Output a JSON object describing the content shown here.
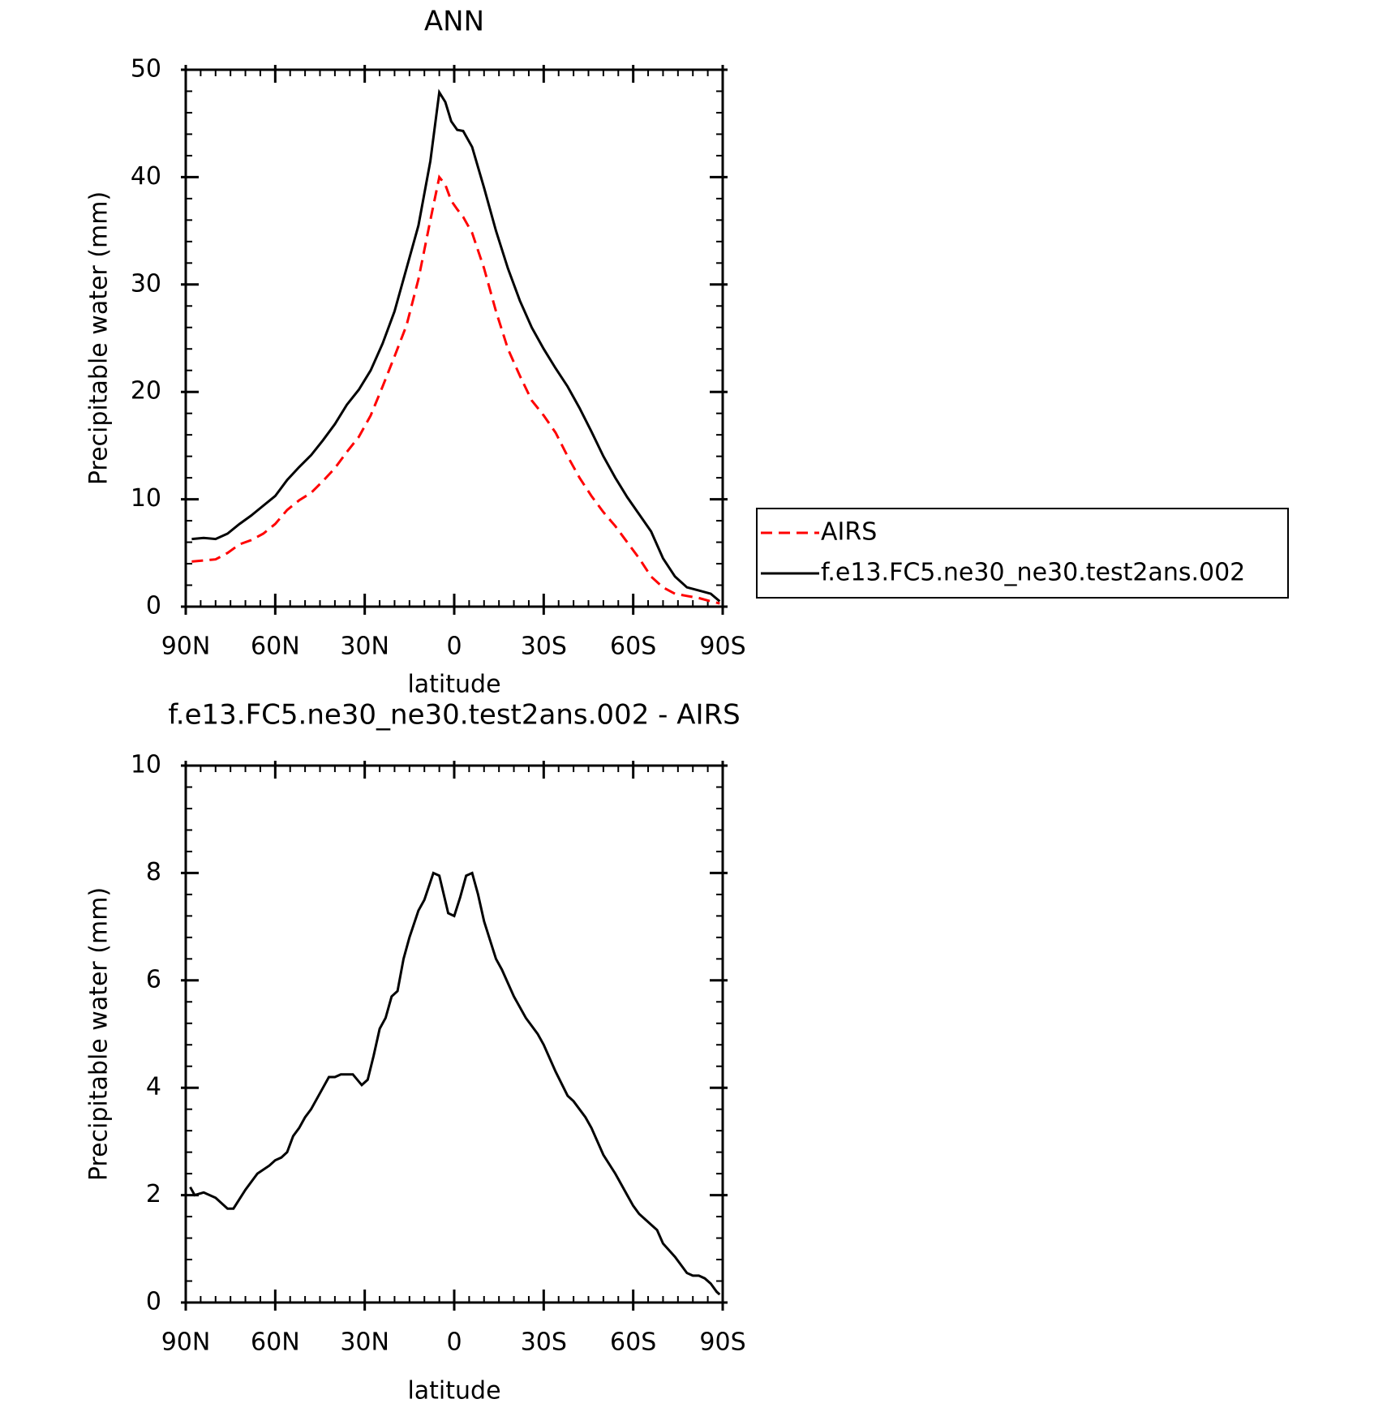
{
  "chart_data": [
    {
      "type": "line",
      "title": "ANN",
      "xlabel": "latitude",
      "ylabel": "Precipitable water (mm)",
      "x": [
        88,
        84,
        80,
        76,
        72,
        68,
        64,
        60,
        56,
        52,
        48,
        44,
        40,
        36,
        32,
        28,
        24,
        20,
        16,
        12,
        8,
        5,
        3,
        1,
        -1,
        -3,
        -6,
        -10,
        -14,
        -18,
        -22,
        -26,
        -30,
        -34,
        -38,
        -42,
        -46,
        -50,
        -54,
        -58,
        -62,
        -66,
        -70,
        -74,
        -78,
        -82,
        -86,
        -89
      ],
      "series": [
        {
          "name": "AIRS",
          "color": "#ff0000",
          "style": "dashed",
          "values": [
            4.2,
            4.3,
            4.4,
            5.0,
            5.8,
            6.2,
            6.8,
            7.7,
            9.0,
            9.9,
            10.6,
            11.7,
            12.9,
            14.4,
            15.8,
            17.8,
            20.5,
            23.3,
            26.2,
            30.5,
            36.0,
            40.0,
            39.3,
            37.8,
            37.0,
            36.3,
            34.8,
            31.5,
            27.5,
            24.0,
            21.5,
            19.2,
            17.8,
            16.2,
            14.0,
            12.0,
            10.3,
            8.8,
            7.5,
            6.0,
            4.5,
            2.8,
            1.8,
            1.2,
            1.0,
            0.8,
            0.5,
            0.3
          ]
        },
        {
          "name": "f.e13.FC5.ne30_ne30.test2ans.002",
          "color": "#000000",
          "style": "solid",
          "values": [
            6.3,
            6.4,
            6.3,
            6.8,
            7.7,
            8.5,
            9.4,
            10.3,
            11.8,
            13.0,
            14.1,
            15.5,
            17.0,
            18.8,
            20.2,
            22.0,
            24.5,
            27.5,
            31.5,
            35.5,
            41.5,
            47.9,
            47.0,
            45.2,
            44.4,
            44.3,
            42.8,
            39.0,
            35.0,
            31.5,
            28.5,
            26.0,
            24.0,
            22.2,
            20.5,
            18.5,
            16.3,
            14.0,
            12.0,
            10.2,
            8.6,
            7.0,
            4.5,
            2.8,
            1.8,
            1.5,
            1.2,
            0.5
          ]
        }
      ],
      "xlim": [
        90,
        -90
      ],
      "xticks": [
        {
          "value": 90,
          "label": "90N"
        },
        {
          "value": 60,
          "label": "60N"
        },
        {
          "value": 30,
          "label": "30N"
        },
        0,
        {
          "value": -30,
          "label": "30S"
        },
        {
          "value": -60,
          "label": "60S"
        },
        {
          "value": -90,
          "label": "90S"
        }
      ],
      "ylim": [
        0,
        50
      ],
      "yticks": [
        0,
        10,
        20,
        30,
        40,
        50
      ],
      "legend": "outside right"
    },
    {
      "type": "line",
      "title": "f.e13.FC5.ne30_ne30.test2ans.002 - AIRS",
      "xlabel": "latitude",
      "ylabel": "Precipitable water (mm)",
      "x": [
        88.5,
        87,
        84,
        80,
        76,
        74,
        70,
        66,
        62,
        60,
        58,
        56,
        54,
        52,
        50,
        48,
        44,
        42,
        40,
        38,
        34,
        31,
        29,
        27,
        25,
        23,
        21,
        19,
        17,
        15,
        12,
        10,
        7,
        5,
        2,
        0,
        -2,
        -4,
        -6,
        -8,
        -10,
        -14,
        -16,
        -20,
        -24,
        -28,
        -30,
        -34,
        -38,
        -40,
        -44,
        -46,
        -50,
        -54,
        -58,
        -60,
        -62,
        -66,
        -68,
        -70,
        -74,
        -78,
        -80,
        -82,
        -84,
        -86,
        -88,
        -89
      ],
      "series": [
        {
          "color": "#000000",
          "style": "solid",
          "values": [
            2.15,
            2.0,
            2.05,
            1.95,
            1.75,
            1.75,
            2.1,
            2.4,
            2.55,
            2.65,
            2.7,
            2.8,
            3.1,
            3.25,
            3.45,
            3.6,
            4.0,
            4.2,
            4.2,
            4.25,
            4.25,
            4.05,
            4.15,
            4.6,
            5.1,
            5.3,
            5.7,
            5.8,
            6.4,
            6.8,
            7.3,
            7.5,
            8.0,
            7.95,
            7.25,
            7.2,
            7.55,
            7.95,
            8.0,
            7.6,
            7.1,
            6.4,
            6.2,
            5.7,
            5.3,
            5.0,
            4.8,
            4.3,
            3.85,
            3.75,
            3.45,
            3.25,
            2.75,
            2.4,
            2.0,
            1.8,
            1.65,
            1.45,
            1.35,
            1.1,
            0.85,
            0.55,
            0.5,
            0.5,
            0.45,
            0.35,
            0.2,
            0.15
          ]
        }
      ],
      "xlim": [
        90,
        -90
      ],
      "xticks": [
        {
          "value": 90,
          "label": "90N"
        },
        {
          "value": 60,
          "label": "60N"
        },
        {
          "value": 30,
          "label": "30N"
        },
        0,
        {
          "value": -30,
          "label": "30S"
        },
        {
          "value": -60,
          "label": "60S"
        },
        {
          "value": -90,
          "label": "90S"
        }
      ],
      "ylim": [
        0,
        10
      ],
      "yticks": [
        0,
        2,
        4,
        6,
        8,
        10
      ]
    }
  ]
}
